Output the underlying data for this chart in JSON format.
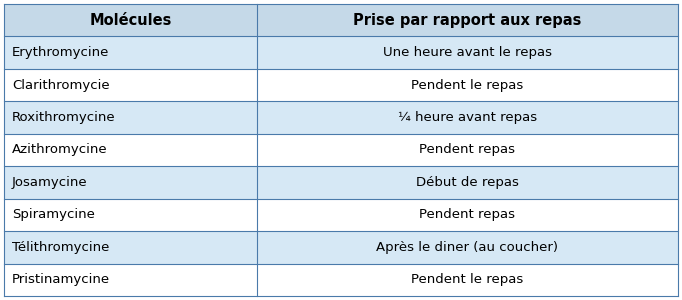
{
  "header": [
    "Molécules",
    "Prise par rapport aux repas"
  ],
  "rows": [
    [
      "Erythromycine",
      "Une heure avant le repas"
    ],
    [
      "Clarithromycie",
      "Pendent le repas"
    ],
    [
      "Roxithromycine",
      "¼ heure avant repas"
    ],
    [
      "Azithromycine",
      "Pendent repas"
    ],
    [
      "Josamycine",
      "Début de repas"
    ],
    [
      "Spiramycine",
      "Pendent repas"
    ],
    [
      "Télithromycine",
      "Après le diner (au coucher)"
    ],
    [
      "Pristinamycine",
      "Pendent le repas"
    ]
  ],
  "header_bg": "#c5d9e8",
  "row_bg_blue": "#d6e8f5",
  "row_bg_white": "#ffffff",
  "border_color": "#4a7aaa",
  "header_fontsize": 10.5,
  "row_fontsize": 9.5,
  "col_split": 0.375,
  "fig_bg": "#ffffff"
}
